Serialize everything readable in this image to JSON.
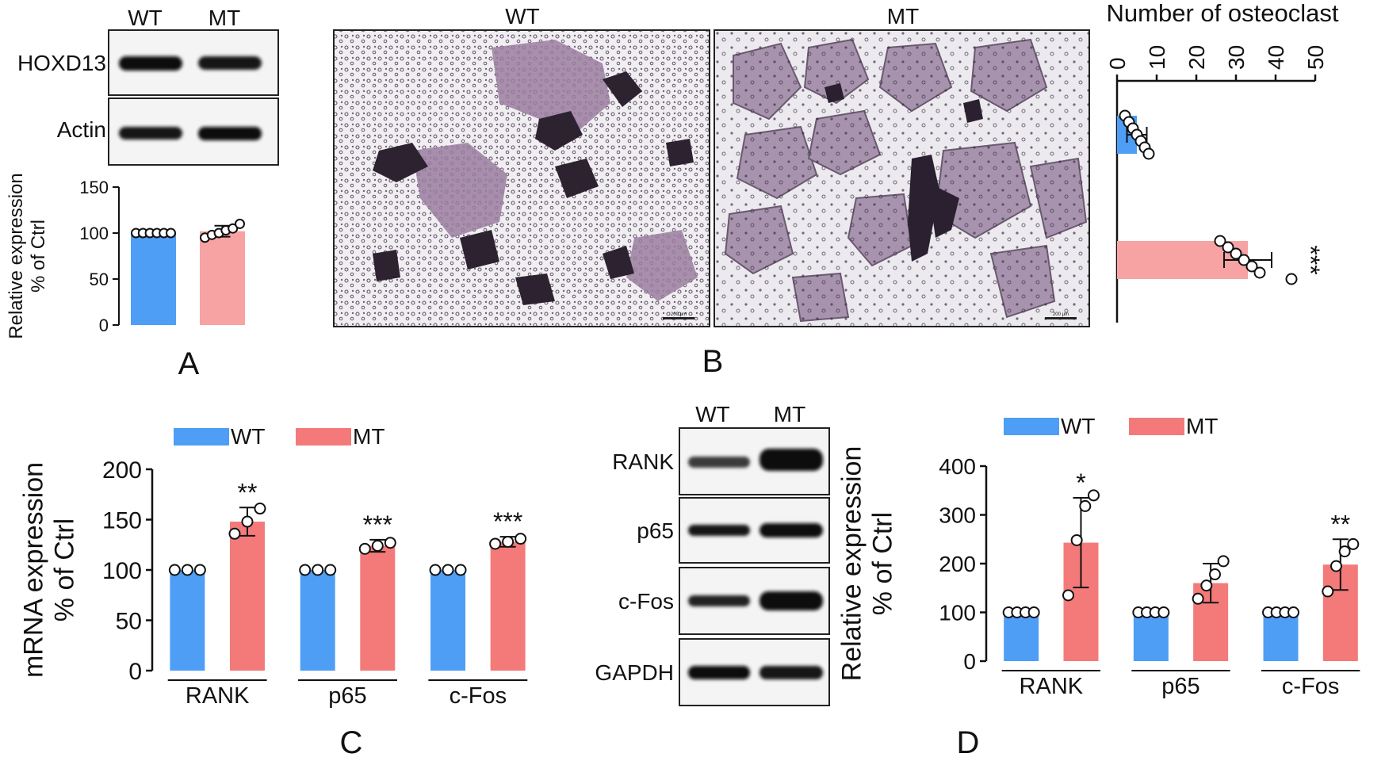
{
  "colors": {
    "wt": "#4f9ef5",
    "mt": "#f47a7a",
    "mt_light": "#f7a3a3",
    "axis": "#111111"
  },
  "panel_labels": [
    "A",
    "B",
    "C",
    "D"
  ],
  "panel_a": {
    "lanes": [
      "WT",
      "MT"
    ],
    "proteins": [
      "HOXD13",
      "Actin"
    ]
  },
  "panel_b": {
    "image_labels": [
      "WT",
      "MT"
    ],
    "scale_bar": "200 µm"
  },
  "panel_d": {
    "lanes": [
      "WT",
      "MT"
    ],
    "proteins": [
      "RANK",
      "p65",
      "c-Fos",
      "GAPDH"
    ]
  },
  "chart_data": [
    {
      "id": "A",
      "type": "bar",
      "categories": [
        "WT",
        "MT"
      ],
      "values": [
        100,
        102
      ],
      "errors": [
        0,
        6
      ],
      "points": [
        [
          100,
          100,
          100,
          100,
          100,
          100
        ],
        [
          95,
          98,
          100,
          103,
          105,
          110
        ]
      ],
      "ylabel": "Relative expression\n% of Ctrl",
      "ylim": [
        0,
        150
      ],
      "yticks": [
        0,
        50,
        100,
        150
      ],
      "show_category_labels": false
    },
    {
      "id": "B",
      "type": "bar",
      "orientation": "horizontal",
      "categories": [
        "WT",
        "MT"
      ],
      "values": [
        5,
        33
      ],
      "errors": [
        2.5,
        6
      ],
      "points": [
        [
          2,
          3,
          4,
          5,
          6,
          7,
          8
        ],
        [
          26,
          28,
          30,
          32,
          34,
          36,
          44
        ]
      ],
      "xlabel": "Number of osteoclast",
      "xlim": [
        0,
        50
      ],
      "xticks": [
        0,
        10,
        20,
        30,
        40,
        50
      ],
      "annotations": [
        "",
        "***"
      ]
    },
    {
      "id": "C",
      "type": "bar",
      "categories": [
        "RANK",
        "p65",
        "c-Fos"
      ],
      "series": [
        {
          "name": "WT",
          "values": [
            100,
            100,
            100
          ],
          "errors": [
            0,
            0,
            0
          ],
          "points": [
            [
              100,
              100,
              100
            ],
            [
              100,
              100,
              100
            ],
            [
              100,
              100,
              100
            ]
          ]
        },
        {
          "name": "MT",
          "values": [
            148,
            124,
            128
          ],
          "errors": [
            14,
            6,
            5
          ],
          "points": [
            [
              136,
              148,
              161
            ],
            [
              121,
              124,
              127
            ],
            [
              126,
              128,
              131
            ]
          ]
        }
      ],
      "annotations": [
        "**",
        "***",
        "***"
      ],
      "ylabel": "mRNA expression\n% of Ctrl",
      "ylim": [
        0,
        200
      ],
      "yticks": [
        0,
        50,
        100,
        150,
        200
      ],
      "legend": "top"
    },
    {
      "id": "D",
      "type": "bar",
      "categories": [
        "RANK",
        "p65",
        "c-Fos"
      ],
      "series": [
        {
          "name": "WT",
          "values": [
            100,
            100,
            100
          ],
          "errors": [
            0,
            0,
            0
          ],
          "points": [
            [
              100,
              100,
              100,
              100
            ],
            [
              100,
              100,
              100,
              100
            ],
            [
              100,
              100,
              100,
              100
            ]
          ]
        },
        {
          "name": "MT",
          "values": [
            243,
            160,
            198
          ],
          "errors": [
            92,
            40,
            52
          ],
          "points": [
            [
              135,
              248,
              318,
              340
            ],
            [
              128,
              155,
              178,
              205
            ],
            [
              143,
              195,
              225,
              240
            ]
          ]
        }
      ],
      "annotations": [
        "*",
        "",
        "**"
      ],
      "ylabel": "Relative expression\n% of Ctrl",
      "ylim": [
        0,
        400
      ],
      "yticks": [
        0,
        100,
        200,
        300,
        400
      ],
      "legend": "top"
    }
  ]
}
